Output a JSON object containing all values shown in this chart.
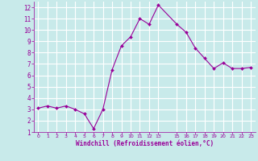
{
  "x": [
    0,
    1,
    2,
    3,
    4,
    5,
    6,
    7,
    8,
    9,
    10,
    11,
    12,
    13,
    15,
    16,
    17,
    18,
    19,
    20,
    21,
    22,
    23
  ],
  "y": [
    3.1,
    3.3,
    3.1,
    3.3,
    3.0,
    2.6,
    1.3,
    3.0,
    6.5,
    8.6,
    9.4,
    11.0,
    10.5,
    12.2,
    10.5,
    9.8,
    8.4,
    7.5,
    6.6,
    7.1,
    6.6,
    6.6,
    6.7
  ],
  "line_color": "#990099",
  "marker_color": "#990099",
  "bg_color": "#c8eaea",
  "grid_color": "#ffffff",
  "xlabel": "Windchill (Refroidissement éolien,°C)",
  "xlabel_color": "#990099",
  "tick_color": "#990099",
  "ylim": [
    1,
    12.5
  ],
  "xlim": [
    -0.5,
    23.5
  ],
  "yticks": [
    1,
    2,
    3,
    4,
    5,
    6,
    7,
    8,
    9,
    10,
    11,
    12
  ],
  "xticks": [
    0,
    1,
    2,
    3,
    4,
    5,
    6,
    7,
    8,
    9,
    10,
    11,
    12,
    13,
    15,
    16,
    17,
    18,
    19,
    20,
    21,
    22,
    23
  ],
  "xtick_labels": [
    "0",
    "1",
    "2",
    "3",
    "4",
    "5",
    "6",
    "7",
    "8",
    "9",
    "10",
    "11",
    "12",
    "13",
    "15",
    "16",
    "17",
    "18",
    "19",
    "20",
    "21",
    "22",
    "23"
  ]
}
